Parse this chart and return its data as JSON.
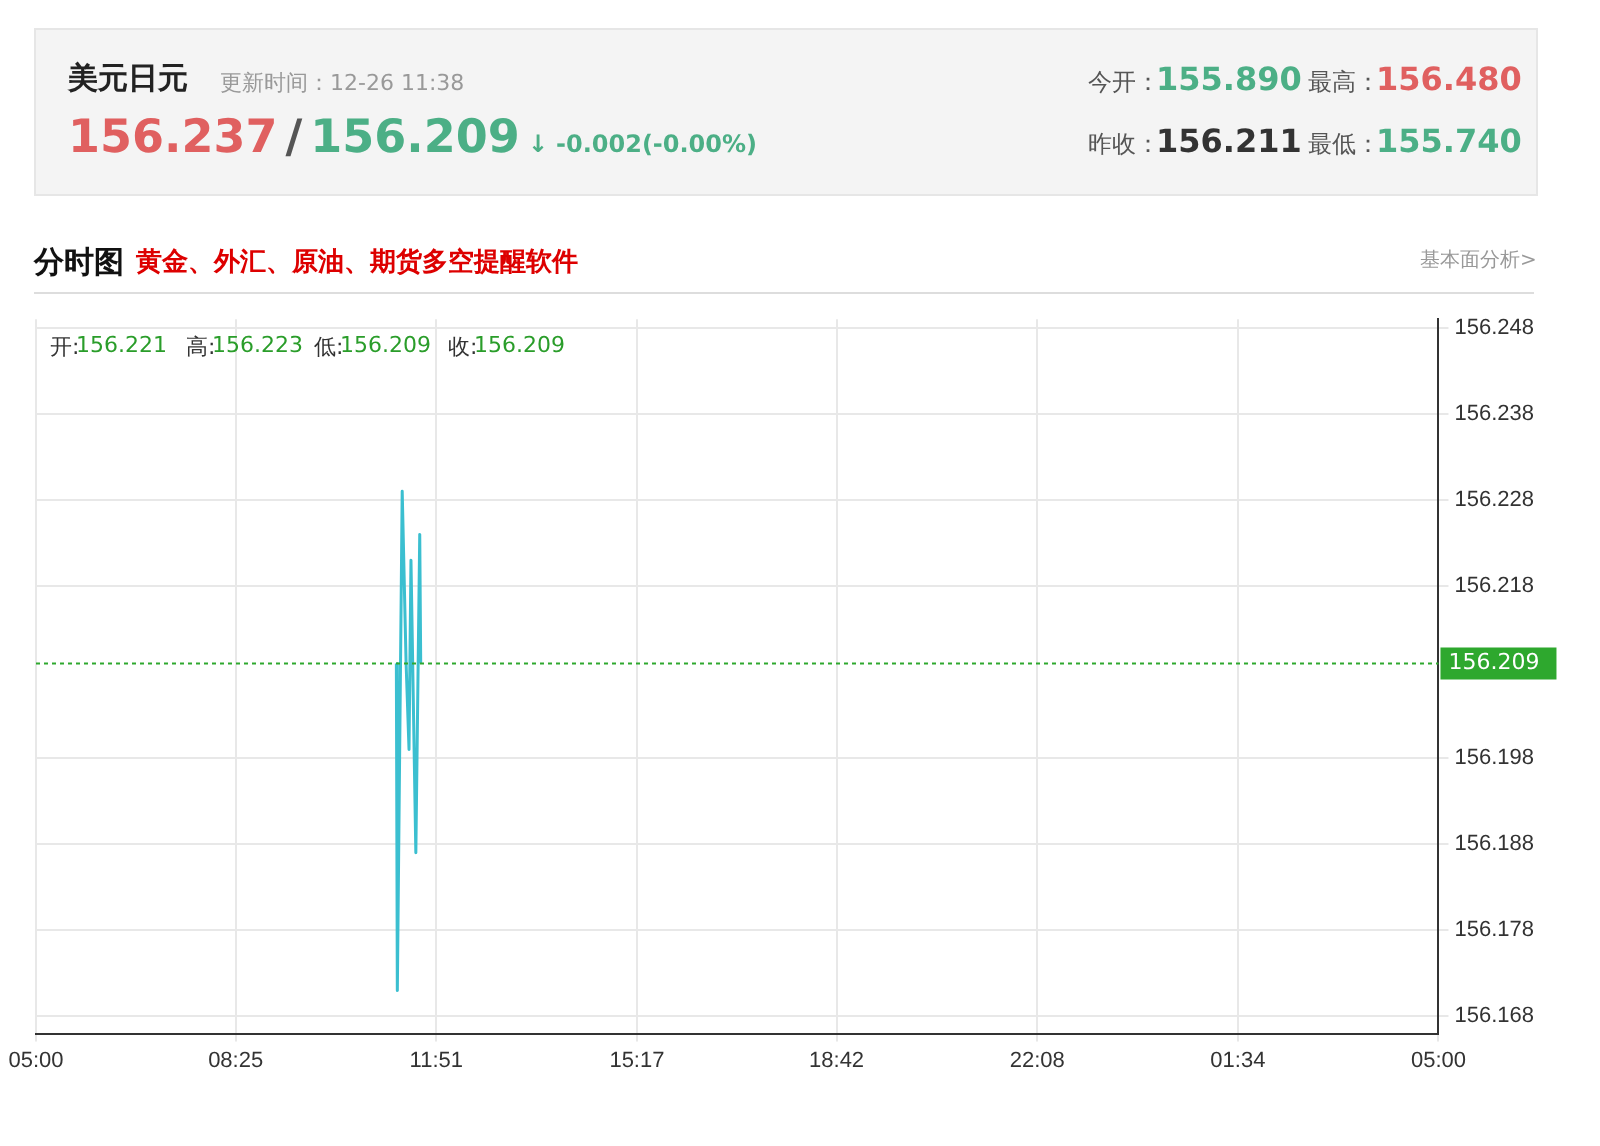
{
  "chart_data": {
    "type": "line",
    "title": "美元日元",
    "subtitle": "更新时间：12-26 11:38",
    "annotations": [
      "156.237",
      "/",
      "156.209",
      "↓",
      "-0.002(-0.00%)",
      "今开：",
      "155.890",
      "最高：",
      "156.480",
      "昨收：",
      "156.211",
      "最低：",
      "155.740",
      "分时图",
      "黄金、外汇、原油、期货多空提醒软件",
      "基本面分析>",
      "开:",
      "156.221",
      "高:",
      "156.223",
      "低:",
      "156.209",
      "收:",
      "156.209"
    ],
    "x": [
      "--12-26T11:10",
      "--12-26T11:11",
      "--12-26T11:16",
      "--12-26T11:20",
      "--12-26T11:23",
      "--12-26T11:25",
      "--12-26T11:30",
      "--12-26T11:34",
      "--12-26T11:35"
    ],
    "series": [
      {
        "color": "#3bbfd0",
        "values": [
          156.209,
          156.171,
          156.229,
          156.209,
          156.199,
          156.221,
          156.187,
          156.224,
          156.209
        ]
      }
    ],
    "xlim": [
      "--12-26T05:00",
      "--12-27T05:00"
    ],
    "xticks": [
      {
        "value": "--12-26T05:00",
        "label": "05:00"
      },
      {
        "value": "--12-26T08:25",
        "label": "08:25"
      },
      {
        "value": "--12-26T11:51",
        "label": "11:51"
      },
      {
        "value": "--12-26T15:17",
        "label": "15:17"
      },
      {
        "value": "--12-26T18:42",
        "label": "18:42"
      },
      {
        "value": "--12-26T22:08",
        "label": "22:08"
      },
      {
        "value": "--12-27T01:34",
        "label": "01:34"
      },
      {
        "value": "--12-27T05:00",
        "label": "05:00"
      }
    ],
    "ylim": [
      156.166,
      156.249
    ],
    "yticks": [
      156.248,
      156.238,
      156.228,
      156.218,
      156.198,
      156.188,
      156.178,
      156.168
    ],
    "ref_lines": [
      {
        "axis": "y",
        "value": 156.209,
        "label": "156.209",
        "color": "#2ea82e",
        "line_style": "dotted"
      }
    ],
    "grid": true,
    "legend": false,
    "marker": "none",
    "line_style": "solid"
  }
}
